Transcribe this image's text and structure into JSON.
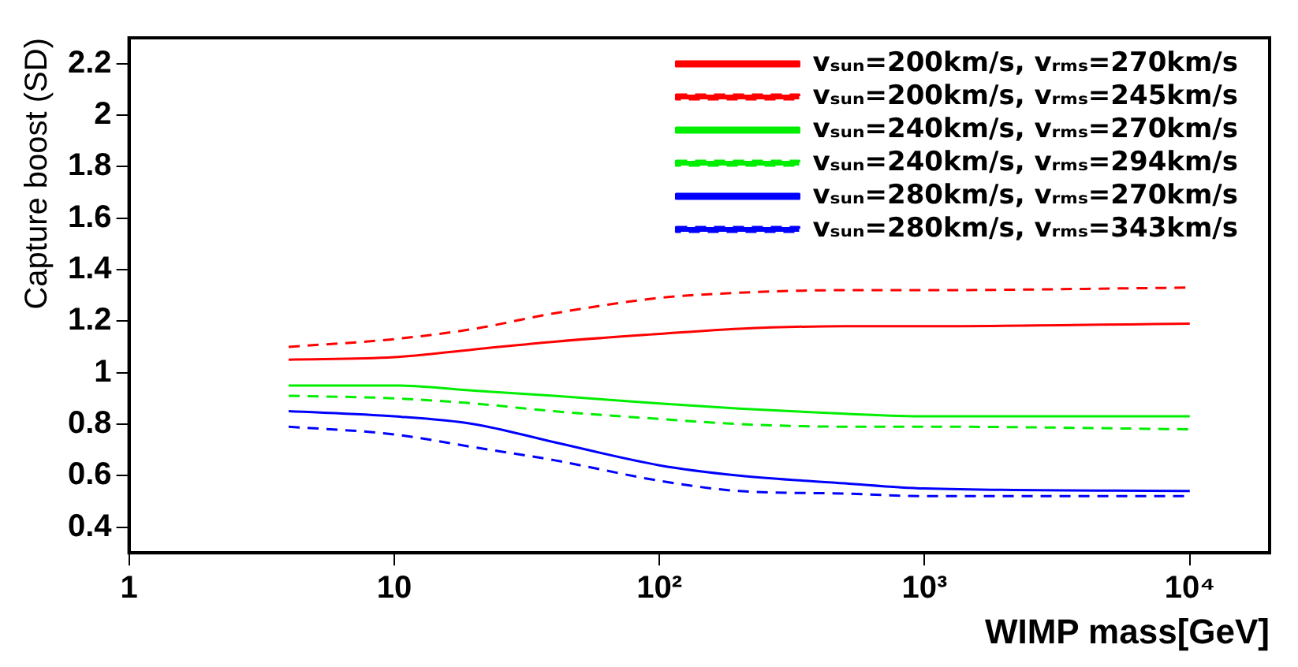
{
  "chart_data": {
    "type": "line",
    "xlabel": "WIMP mass[GeV]",
    "ylabel": "Capture boost (SD)",
    "x": [
      4,
      10,
      20,
      40,
      100,
      200,
      500,
      1000,
      10000
    ],
    "series": [
      {
        "name": "vₛᵤₙ=200km/s, vᵣₘₛ=270km/s",
        "color": "#ff0000",
        "line_style": "solid",
        "values": [
          1.05,
          1.06,
          1.09,
          1.12,
          1.15,
          1.17,
          1.18,
          1.18,
          1.19
        ]
      },
      {
        "name": "vₛᵤₙ=200km/s, vᵣₘₛ=245km/s",
        "color": "#ff0000",
        "line_style": "dashed",
        "values": [
          1.1,
          1.13,
          1.17,
          1.23,
          1.29,
          1.31,
          1.32,
          1.32,
          1.33
        ]
      },
      {
        "name": "vₛᵤₙ=240km/s, vᵣₘₛ=270km/s",
        "color": "#00ee00",
        "line_style": "solid",
        "values": [
          0.95,
          0.95,
          0.93,
          0.91,
          0.88,
          0.86,
          0.84,
          0.83,
          0.83
        ]
      },
      {
        "name": "vₛᵤₙ=240km/s, vᵣₘₛ=294km/s",
        "color": "#00ee00",
        "line_style": "dashed",
        "values": [
          0.91,
          0.9,
          0.88,
          0.85,
          0.82,
          0.8,
          0.79,
          0.79,
          0.78
        ]
      },
      {
        "name": "vₛᵤₙ=280km/s, vᵣₘₛ=270km/s",
        "color": "#0000ff",
        "line_style": "solid",
        "values": [
          0.85,
          0.83,
          0.8,
          0.73,
          0.64,
          0.6,
          0.57,
          0.55,
          0.54
        ]
      },
      {
        "name": "vₛᵤₙ=280km/s, vᵣₘₛ=343km/s",
        "color": "#0000ff",
        "line_style": "dashed",
        "values": [
          0.79,
          0.76,
          0.71,
          0.66,
          0.58,
          0.54,
          0.53,
          0.52,
          0.52
        ]
      }
    ],
    "log": "x",
    "xlim": [
      1,
      20000
    ],
    "xticks": [
      1,
      10,
      {
        "value": 100,
        "label": "10²"
      },
      {
        "value": 1000,
        "label": "10³"
      },
      {
        "value": 10000,
        "label": "10⁴"
      }
    ],
    "ylim": [
      0.3,
      2.3
    ],
    "yticks": [
      0.4,
      0.6,
      0.8,
      1,
      1.2,
      1.4,
      1.6,
      1.8,
      2,
      2.2
    ],
    "grid": false,
    "legend": "top right",
    "marker": "none"
  }
}
